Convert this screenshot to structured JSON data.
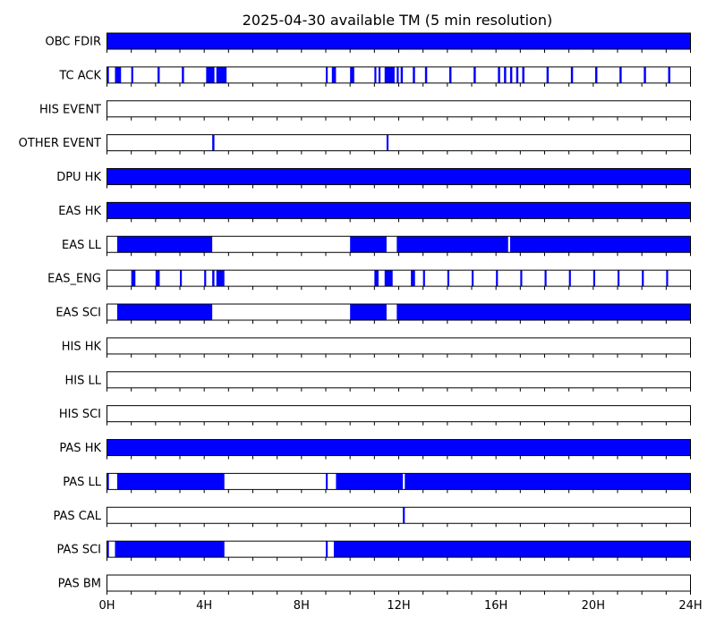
{
  "chart_data": {
    "type": "timeline",
    "title": "2025-04-30 available TM (5 min resolution)",
    "xlabel": "",
    "ylabel": "",
    "x_unit": "hours",
    "xlim": [
      0,
      24
    ],
    "x_ticks": [
      {
        "value": 0,
        "label": "0H"
      },
      {
        "value": 4,
        "label": "4H"
      },
      {
        "value": 8,
        "label": "8H"
      },
      {
        "value": 12,
        "label": "12H"
      },
      {
        "value": 16,
        "label": "16H"
      },
      {
        "value": 20,
        "label": "20H"
      },
      {
        "value": 24,
        "label": "24H"
      }
    ],
    "minor_tick_step_hours": 1,
    "fill_color": "#0000ff",
    "series": [
      {
        "label": "OBC FDIR",
        "intervals": [
          [
            0,
            24
          ]
        ]
      },
      {
        "label": "TC ACK",
        "intervals": [
          [
            0,
            0.08
          ],
          [
            0.33,
            0.58
          ],
          [
            1.0,
            1.08
          ],
          [
            2.08,
            2.17
          ],
          [
            3.08,
            3.17
          ],
          [
            4.08,
            4.42
          ],
          [
            4.5,
            4.92
          ],
          [
            9.0,
            9.08
          ],
          [
            9.25,
            9.42
          ],
          [
            10.0,
            10.17
          ],
          [
            11.0,
            11.08
          ],
          [
            11.17,
            11.25
          ],
          [
            11.42,
            11.83
          ],
          [
            11.92,
            12.0
          ],
          [
            12.08,
            12.17
          ],
          [
            12.58,
            12.67
          ],
          [
            13.08,
            13.17
          ],
          [
            14.08,
            14.17
          ],
          [
            15.08,
            15.17
          ],
          [
            16.08,
            16.17
          ],
          [
            16.33,
            16.42
          ],
          [
            16.58,
            16.67
          ],
          [
            16.83,
            16.92
          ],
          [
            17.08,
            17.17
          ],
          [
            18.08,
            18.17
          ],
          [
            19.08,
            19.17
          ],
          [
            20.08,
            20.17
          ],
          [
            21.08,
            21.17
          ],
          [
            22.08,
            22.17
          ],
          [
            23.08,
            23.17
          ]
        ]
      },
      {
        "label": "HIS EVENT",
        "intervals": []
      },
      {
        "label": "OTHER EVENT",
        "intervals": [
          [
            4.33,
            4.42
          ],
          [
            11.5,
            11.58
          ]
        ]
      },
      {
        "label": "DPU HK",
        "intervals": [
          [
            0,
            24
          ]
        ]
      },
      {
        "label": "EAS HK",
        "intervals": [
          [
            0,
            24
          ]
        ]
      },
      {
        "label": "EAS LL",
        "intervals": [
          [
            0.42,
            4.33
          ],
          [
            10.0,
            11.5
          ],
          [
            11.92,
            16.5
          ],
          [
            16.58,
            24
          ]
        ]
      },
      {
        "label": "EAS_ENG",
        "intervals": [
          [
            1.0,
            1.17
          ],
          [
            2.0,
            2.17
          ],
          [
            3.0,
            3.08
          ],
          [
            4.0,
            4.08
          ],
          [
            4.33,
            4.42
          ],
          [
            4.5,
            4.83
          ],
          [
            11.0,
            11.17
          ],
          [
            11.42,
            11.75
          ],
          [
            12.5,
            12.67
          ],
          [
            13.0,
            13.08
          ],
          [
            14.0,
            14.08
          ],
          [
            15.0,
            15.08
          ],
          [
            16.0,
            16.08
          ],
          [
            17.0,
            17.08
          ],
          [
            18.0,
            18.08
          ],
          [
            19.0,
            19.08
          ],
          [
            20.0,
            20.08
          ],
          [
            21.0,
            21.08
          ],
          [
            22.0,
            22.08
          ],
          [
            23.0,
            23.08
          ]
        ]
      },
      {
        "label": "EAS SCI",
        "intervals": [
          [
            0.42,
            4.33
          ],
          [
            10.0,
            11.5
          ],
          [
            11.92,
            24
          ]
        ]
      },
      {
        "label": "HIS HK",
        "intervals": []
      },
      {
        "label": "HIS LL",
        "intervals": []
      },
      {
        "label": "HIS SCI",
        "intervals": []
      },
      {
        "label": "PAS HK",
        "intervals": [
          [
            0,
            24
          ]
        ]
      },
      {
        "label": "PAS LL",
        "intervals": [
          [
            0,
            0.08
          ],
          [
            0.42,
            4.83
          ],
          [
            9.0,
            9.08
          ],
          [
            9.42,
            12.17
          ],
          [
            12.25,
            24
          ]
        ]
      },
      {
        "label": "PAS CAL",
        "intervals": [
          [
            12.17,
            12.25
          ]
        ]
      },
      {
        "label": "PAS SCI",
        "intervals": [
          [
            0,
            0.08
          ],
          [
            0.33,
            4.83
          ],
          [
            9.0,
            9.08
          ],
          [
            9.33,
            24
          ]
        ]
      },
      {
        "label": "PAS BM",
        "intervals": []
      }
    ]
  }
}
